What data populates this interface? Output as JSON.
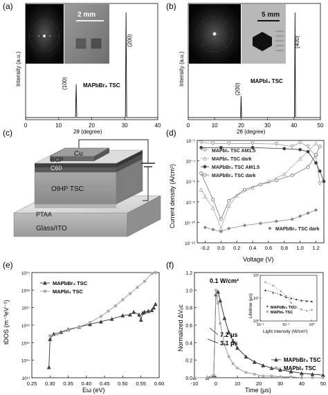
{
  "figure": {
    "panels": [
      {
        "id": "a",
        "label": "(a)"
      },
      {
        "id": "b",
        "label": "(b)"
      },
      {
        "id": "c",
        "label": "(c)"
      },
      {
        "id": "d",
        "label": "(d)"
      },
      {
        "id": "e",
        "label": "(e)"
      },
      {
        "id": "f",
        "label": "(f)"
      }
    ]
  },
  "chart_data": [
    {
      "panel": "a",
      "type": "line",
      "xlabel": "2θ (degree)",
      "ylabel": "Intensity (a.u.)",
      "xlim": [
        0,
        40
      ],
      "xticks": [
        0,
        10,
        20,
        30,
        40
      ],
      "series": [
        {
          "name": "MAPbBr3 TSC",
          "x": [
            0,
            10,
            15.1,
            15.3,
            15.5,
            20,
            30.2,
            30.4,
            30.6,
            40
          ],
          "y": [
            0.02,
            0.02,
            0.02,
            0.33,
            0.02,
            0.02,
            0.02,
            1.0,
            0.02,
            0.02
          ]
        }
      ],
      "annotations": [
        "(100)",
        "(200)",
        "MAPbBr₃ TSC",
        "2 mm"
      ]
    },
    {
      "panel": "b",
      "type": "line",
      "xlabel": "2θ (degree)",
      "ylabel": "Intensity (a.u.)",
      "xlim": [
        0,
        50
      ],
      "xticks": [
        0,
        10,
        20,
        30,
        40,
        50
      ],
      "series": [
        {
          "name": "MAPbI3 TSC",
          "x": [
            0,
            10,
            19.8,
            20.0,
            20.2,
            30,
            40.2,
            40.4,
            40.6,
            50
          ],
          "y": [
            0.02,
            0.02,
            0.02,
            0.22,
            0.02,
            0.02,
            0.02,
            1.0,
            0.02,
            0.02
          ]
        }
      ],
      "annotations": [
        "(200)",
        "(400)",
        "MAPbI₃ TSC",
        "5 mm"
      ]
    },
    {
      "panel": "d",
      "type": "scatter",
      "xlabel": "Voltage (V)",
      "ylabel": "Current density (A/cm²)",
      "xlim": [
        -0.3,
        1.3
      ],
      "ylim_log10": [
        -12,
        -2
      ],
      "xticks": [
        -0.2,
        0.0,
        0.2,
        0.4,
        0.6,
        0.8,
        1.0,
        1.2
      ],
      "yticks": [
        "10⁻¹²",
        "10⁻¹⁰",
        "10⁻⁸",
        "10⁻⁶",
        "10⁻⁴",
        "10⁻²"
      ],
      "series": [
        {
          "name": "MAPbI₃ TSC AM1.5",
          "x": [
            -0.25,
            -0.1,
            0.1,
            0.4,
            0.7,
            0.9,
            1.0,
            1.1,
            1.2,
            1.25
          ],
          "log10y": [
            -2.2,
            -2.3,
            -2.3,
            -2.3,
            -2.35,
            -2.6,
            -2.2,
            -2.6,
            -3.6,
            -6.2
          ],
          "marker": "triangle-down-open"
        },
        {
          "name": "MAPbI₃ TSC dark",
          "x": [
            -0.25,
            -0.2,
            -0.1,
            0.0,
            0.1,
            0.2,
            0.4,
            0.6,
            0.8,
            1.0,
            1.2
          ],
          "log10y": [
            -6.8,
            -7.5,
            -8.6,
            -10.6,
            -8.4,
            -7.4,
            -6.6,
            -6.0,
            -5.3,
            -3.8,
            -2.3
          ],
          "marker": "triangle-open"
        },
        {
          "name": "MAPbBr₃ TSC AM1.5",
          "x": [
            -0.25,
            0.0,
            0.4,
            0.8,
            1.0,
            1.1,
            1.2,
            1.25,
            1.3
          ],
          "log10y": [
            -2.7,
            -2.7,
            -2.7,
            -2.8,
            -2.9,
            -3.1,
            -4.2,
            -5.0,
            -6.0
          ],
          "marker": "circle-filled"
        },
        {
          "name": "MAPbBr₃ TSC dark",
          "x": [
            -0.25,
            -0.1,
            0.0,
            0.1,
            0.3,
            0.5,
            0.7,
            0.9,
            1.1,
            1.2,
            1.25
          ],
          "log10y": [
            -5.2,
            -7.8,
            -9.7,
            -7.9,
            -6.8,
            -6.3,
            -5.9,
            -5.4,
            -4.6,
            -3.4,
            -2.6
          ],
          "marker": "circle-open"
        },
        {
          "name": "MAPbBr₃ TSC dark",
          "x": [
            -0.2,
            -0.1,
            0.0,
            0.1,
            0.3,
            0.5,
            0.7,
            0.9,
            1.0,
            1.1,
            1.2
          ],
          "log10y": [
            -10.5,
            -10.7,
            -10.9,
            -10.6,
            -10.3,
            -10.1,
            -9.9,
            -9.7,
            -9.4,
            -9.1,
            -8.8
          ],
          "marker": "diamond-filled"
        }
      ]
    },
    {
      "panel": "e",
      "type": "line",
      "xlabel": "Eω (eV)",
      "ylabel": "tDOS (m⁻³eV⁻¹)",
      "xlim": [
        0.25,
        0.6
      ],
      "ylim_log10": [
        13,
        19
      ],
      "xticks": [
        0.25,
        0.3,
        0.35,
        0.4,
        0.45,
        0.5,
        0.55,
        0.6
      ],
      "yticks": [
        "10¹³",
        "10¹⁴",
        "10¹⁵",
        "10¹⁶",
        "10¹⁷",
        "10¹⁸",
        "10¹⁹"
      ],
      "series": [
        {
          "name": "MAPbBr₃ TSC",
          "x": [
            0.297,
            0.3,
            0.31,
            0.33,
            0.35,
            0.38,
            0.41,
            0.44,
            0.47,
            0.5,
            0.52,
            0.53,
            0.545,
            0.55,
            0.555,
            0.56,
            0.57,
            0.58,
            0.585,
            0.59
          ],
          "log10y": [
            13.6,
            15.2,
            15.5,
            15.6,
            15.75,
            15.9,
            16.05,
            16.2,
            16.35,
            16.55,
            16.6,
            16.75,
            16.6,
            16.3,
            16.7,
            16.75,
            16.8,
            16.85,
            17.0,
            17.2
          ]
        },
        {
          "name": "MAPbI₃ TSC",
          "x": [
            0.3,
            0.32,
            0.35,
            0.38,
            0.41,
            0.44,
            0.46,
            0.48,
            0.5,
            0.52,
            0.54,
            0.56,
            0.58,
            0.59
          ],
          "log10y": [
            15.4,
            15.5,
            15.7,
            15.9,
            16.15,
            16.5,
            16.8,
            17.1,
            17.45,
            17.8,
            18.15,
            18.5,
            18.95,
            19.0
          ]
        }
      ]
    },
    {
      "panel": "f",
      "type": "line",
      "xlabel": "Time (μs)",
      "ylabel": "Normalized ΔVₒc",
      "xlim": [
        -10,
        50
      ],
      "ylim": [
        0,
        1.2
      ],
      "xticks": [
        -10,
        0,
        10,
        20,
        30,
        40,
        50
      ],
      "yticks": [
        0.0,
        0.2,
        0.4,
        0.6,
        0.8,
        1.0,
        1.2
      ],
      "series": [
        {
          "name": "MAPbBr₃ TSC",
          "x": [
            -10,
            -4,
            -1,
            0,
            1,
            2,
            4,
            6,
            8,
            10,
            14,
            18,
            22,
            26,
            30,
            35,
            40,
            45,
            50
          ],
          "y": [
            0.0,
            0.0,
            0.03,
            0.95,
            0.98,
            0.88,
            0.68,
            0.52,
            0.42,
            0.34,
            0.24,
            0.18,
            0.14,
            0.11,
            0.09,
            0.07,
            0.05,
            0.04,
            0.03
          ]
        },
        {
          "name": "MAPbI₃ TSC",
          "x": [
            -10,
            -4,
            -1,
            0,
            1,
            2,
            4,
            6,
            8,
            10,
            14,
            18,
            22,
            26,
            30,
            35,
            40,
            45,
            50
          ],
          "y": [
            0.0,
            0.0,
            0.03,
            1.0,
            0.85,
            0.62,
            0.38,
            0.24,
            0.16,
            0.11,
            0.06,
            0.04,
            0.02,
            0.02,
            0.01,
            0.01,
            0.0,
            0.0,
            0.0
          ]
        }
      ],
      "annotations": [
        "0.1 W/cm²",
        "7.2 μs",
        "3.1 μs"
      ],
      "inset": {
        "xlabel": "Light intensity (W/cm²)",
        "ylabel": "Lifetime (μs)",
        "xticks": [
          "10⁻²",
          "10⁻¹",
          "10⁰"
        ],
        "yticks": [
          "10⁰",
          "10¹",
          "10²"
        ],
        "series": [
          {
            "name": "MAPbBr₃ TSC",
            "log10x": [
              -1.8,
              -1.5,
              -1.2,
              -1.0,
              -0.8,
              -0.6,
              -0.4,
              -0.2,
              0.0
            ],
            "log10y": [
              1.35,
              1.25,
              1.15,
              1.05,
              1.0,
              0.95,
              0.9,
              0.88,
              0.86
            ]
          },
          {
            "name": "MAPbI₃ TSC",
            "log10x": [
              -1.8,
              -1.5,
              -1.2,
              -1.0,
              -0.8,
              -0.6,
              -0.4,
              -0.2,
              0.0
            ],
            "log10y": [
              1.7,
              1.55,
              1.3,
              1.1,
              0.8,
              0.6,
              0.5,
              0.45,
              0.49
            ]
          }
        ]
      }
    }
  ],
  "diagram_c": {
    "layers": [
      "Cu",
      "BCP",
      "C60",
      "OIHP TSC",
      "PTAA",
      "Glass/ITO"
    ]
  }
}
